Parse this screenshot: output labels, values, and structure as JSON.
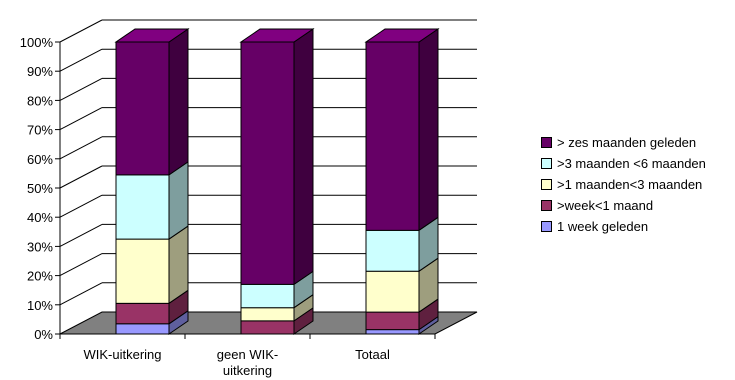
{
  "chart_data": {
    "type": "bar",
    "stacked": true,
    "three_d": true,
    "title": "",
    "xlabel": "",
    "ylabel": "",
    "ylim": [
      0,
      100
    ],
    "y_ticks": [
      "0%",
      "10%",
      "20%",
      "30%",
      "40%",
      "50%",
      "60%",
      "70%",
      "80%",
      "90%",
      "100%"
    ],
    "categories": [
      [
        "WIK-uitkering"
      ],
      [
        "geen WIK-",
        "uitkering"
      ],
      [
        "Totaal"
      ]
    ],
    "series": [
      {
        "name": "1 week geleden",
        "color": "#9999ff",
        "values": [
          3.5,
          0,
          1.5
        ]
      },
      {
        "name": ">week<1 maand",
        "color": "#993366",
        "values": [
          7,
          4.5,
          6
        ]
      },
      {
        "name": ">1 maanden<3 maanden",
        "color": "#ffffcc",
        "values": [
          22,
          4.5,
          14
        ]
      },
      {
        "name": ">3 maanden <6 maanden",
        "color": "#ccffff",
        "values": [
          22,
          8,
          14
        ]
      },
      {
        "name": "> zes maanden geleden",
        "color": "#660066",
        "values": [
          45.5,
          83,
          64.5
        ]
      }
    ],
    "legend_position": "right",
    "grid": true,
    "floor_color": "#808080"
  }
}
